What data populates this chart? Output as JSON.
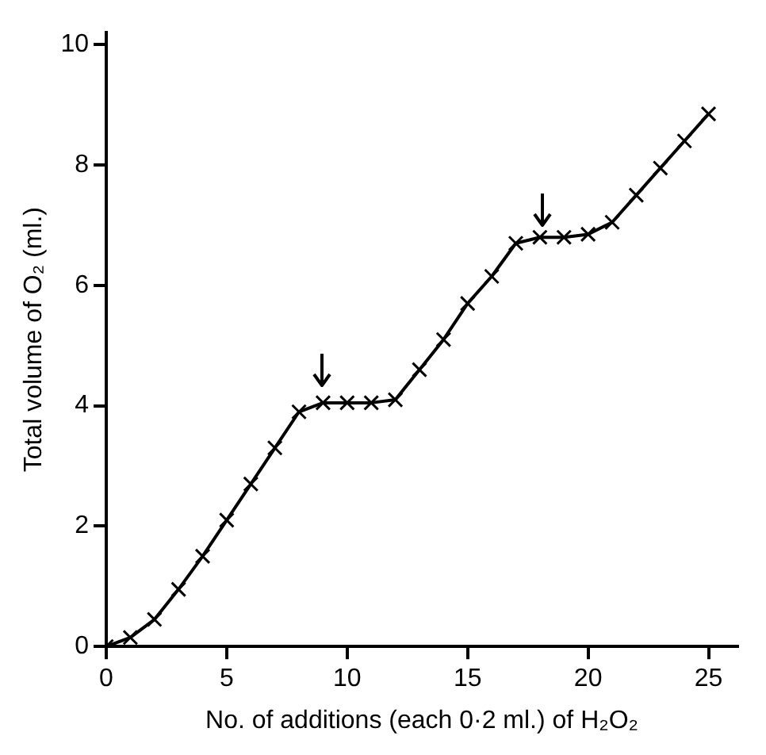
{
  "chart_data": {
    "type": "line",
    "xlabel": "No. of additions (each 0·2 ml.) of H₂O₂",
    "ylabel": "Total volume of O₂ (ml.)",
    "x": [
      0,
      1,
      2,
      3,
      4,
      5,
      6,
      7,
      8,
      9,
      10,
      11,
      12,
      13,
      14,
      15,
      16,
      17,
      18,
      19,
      20,
      21,
      22,
      23,
      24,
      25
    ],
    "series": [
      {
        "color": "#000000",
        "values": [
          0,
          0.15,
          0.45,
          0.95,
          1.5,
          2.1,
          2.7,
          3.3,
          3.9,
          4.05,
          4.05,
          4.05,
          4.1,
          4.6,
          5.1,
          5.7,
          6.15,
          6.7,
          6.8,
          6.8,
          6.85,
          7.05,
          7.5,
          7.95,
          8.4,
          8.85
        ]
      }
    ],
    "xlim": [
      0,
      26.2
    ],
    "ylim": [
      0,
      10.2
    ],
    "xticks": [
      0,
      5,
      10,
      15,
      20,
      25
    ],
    "yticks": [
      0,
      2,
      4,
      6,
      8,
      10
    ],
    "grid": false,
    "legend": false,
    "marker": "cross",
    "line_style": "solid"
  }
}
